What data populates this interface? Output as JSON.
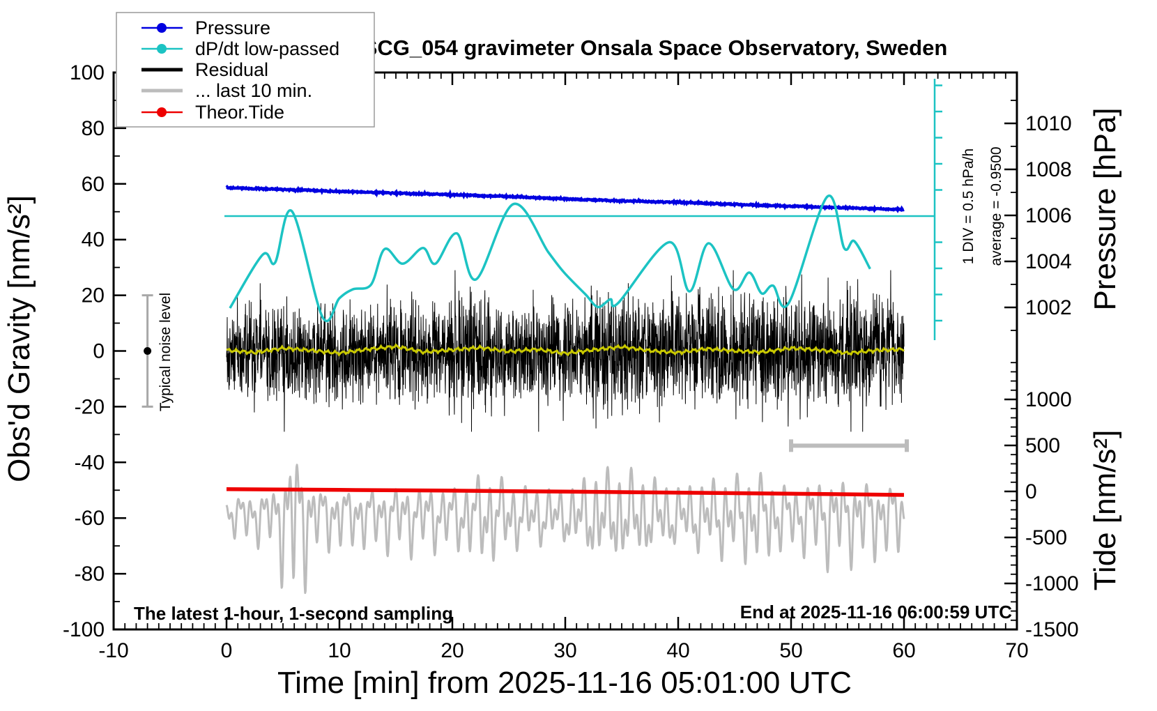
{
  "title": "SCG_054 gravimeter Onsala Space Observatory, Sweden",
  "legend": {
    "entries": [
      {
        "label": "Pressure",
        "color": "#0000e0",
        "line_width": 2.5,
        "dot": true
      },
      {
        "label": "dP/dt low-passed",
        "color": "#1cc3c3",
        "line_width": 2.5,
        "dot": true
      },
      {
        "label": "Residual",
        "color": "#000000",
        "line_width": 5,
        "dot": false
      },
      {
        "label": "... last 10 min.",
        "color": "#bcbcbc",
        "line_width": 5,
        "dot": false
      },
      {
        "label": "Theor.Tide",
        "color": "#ee0000",
        "line_width": 2.5,
        "dot": true
      }
    ]
  },
  "axes": {
    "x": {
      "label": "Time [min] from 2025-11-16 05:01:00 UTC",
      "min": -10,
      "max": 70,
      "major_ticks": [
        -10,
        0,
        10,
        20,
        30,
        40,
        50,
        60,
        70
      ],
      "minor_step": 1
    },
    "y_left": {
      "label": "Obs'd Gravity [nm/s²]",
      "min": -100,
      "max": 100,
      "major_ticks": [
        -100,
        -80,
        -60,
        -40,
        -20,
        0,
        20,
        40,
        60,
        80,
        100
      ],
      "minor_step": 10
    },
    "y_right_pressure": {
      "label": "Pressure [hPa]",
      "major_ticks": [
        1010,
        1008,
        1006,
        1004,
        1002
      ],
      "minor_ticks": [
        1011,
        1009,
        1007,
        1005,
        1003,
        1001
      ]
    },
    "y_right_tide": {
      "label": "Tide [nm/s²]",
      "major_ticks": [
        1000,
        500,
        0,
        -500,
        -1000,
        -1500
      ],
      "minor_step": 100,
      "minor_top": 1400
    }
  },
  "annotations": {
    "div_scale": "1 DIV = 0.5 hPa/h",
    "average": "average = -0.9500",
    "noise_label": "Typical noise level",
    "sampling_note": "The latest 1-hour, 1-second sampling",
    "end_note": "End at 2025-11-16 06:00:59 UTC"
  },
  "chart_data": {
    "type": "line",
    "title": "SCG_054 gravimeter Onsala Space Observatory, Sweden",
    "xlabel": "Time [min] from 2025-11-16 05:01:00 UTC",
    "x_range_min": [
      -10,
      70
    ],
    "grid": false,
    "legend_position": "top-left",
    "series": [
      {
        "name": "Pressure",
        "axis": "pressure_hPa",
        "color": "#0000e0",
        "width": 4.5,
        "t": [
          0,
          5,
          10,
          15,
          20,
          25,
          30,
          35,
          40,
          45,
          50,
          55,
          60
        ],
        "v": [
          1007.2,
          1007.13,
          1007.04,
          1006.97,
          1006.9,
          1006.82,
          1006.72,
          1006.63,
          1006.57,
          1006.48,
          1006.4,
          1006.33,
          1006.25
        ],
        "noise_hPa": 0.016
      },
      {
        "name": "dP/dt low-passed",
        "axis": "dpdt_hPa_per_h",
        "color": "#1cc3c3",
        "width": 3.5,
        "t": [
          0.3,
          3.2,
          4.3,
          5.8,
          8.5,
          10.0,
          11.2,
          12.8,
          14.0,
          15.6,
          17.4,
          18.5,
          20.4,
          22.1,
          25.4,
          28.5,
          29.9,
          31.8,
          32.9,
          34.0,
          34.7,
          39.2,
          41.0,
          42.7,
          44.9,
          46.3,
          47.4,
          48.4,
          49.8,
          53.2,
          54.7,
          55.6,
          57.0
        ],
        "v": [
          -1.76,
          -0.74,
          -0.89,
          0.09,
          -1.93,
          -1.57,
          -1.4,
          -1.31,
          -0.63,
          -0.91,
          -0.61,
          -0.91,
          -0.33,
          -1.21,
          0.23,
          -0.69,
          -1.08,
          -1.5,
          -1.74,
          -1.59,
          -1.66,
          -0.5,
          -1.44,
          -0.52,
          -1.4,
          -1.08,
          -1.48,
          -1.33,
          -1.66,
          0.37,
          -0.61,
          -0.48,
          -1.01
        ]
      },
      {
        "name": "Residual",
        "axis": "gravity_nm_s2",
        "color": "#000000",
        "width": 1,
        "kind": "noise",
        "sigma_t": [
          0,
          3,
          6,
          10,
          14,
          18,
          21,
          24,
          27,
          30,
          33,
          36,
          40,
          43,
          46,
          49,
          52,
          55,
          58,
          60
        ],
        "sigma_v": [
          7.5,
          8.5,
          8,
          8,
          8.5,
          8,
          10,
          9,
          8,
          8.5,
          11,
          10.5,
          9,
          10.5,
          9,
          9.5,
          9,
          10,
          9.5,
          9
        ],
        "clamp": 29,
        "samples": 3000
      },
      {
        "name": "Residual low-passed",
        "axis": "gravity_nm_s2",
        "color": "#c9c900",
        "width": 3,
        "t": [
          0,
          2.5,
          5,
          7.5,
          10,
          12.5,
          15,
          17.5,
          20,
          22.5,
          25,
          27.5,
          30,
          32.5,
          35,
          37.5,
          40,
          42.5,
          45,
          47.5,
          50,
          52.5,
          55,
          57.5,
          60
        ],
        "v": [
          0.3,
          -0.6,
          1.0,
          0.2,
          -0.8,
          0.6,
          1.6,
          -0.4,
          0.4,
          1.2,
          -0.2,
          0.6,
          -0.9,
          0.4,
          1.5,
          0.1,
          -0.6,
          0.8,
          0.0,
          -0.4,
          1.0,
          0.4,
          -0.8,
          0.2,
          0.6
        ],
        "ripple": 0.45
      },
      {
        "name": "... last 10 min.",
        "axis": "tide_nm_s2",
        "color": "#bcbcbc",
        "width": 3,
        "kind": "oscillation",
        "center": -250,
        "skew": 0.15,
        "periods": [
          1.05,
          0.52,
          2.3
        ],
        "weights": [
          0.55,
          0.45,
          0.25
        ],
        "phases": [
          0.7,
          2.1,
          4.0
        ],
        "amp_t": [
          0,
          4,
          6,
          8,
          12,
          16,
          20,
          23,
          26,
          30,
          33,
          36,
          40,
          43,
          47,
          50,
          53,
          56,
          60
        ],
        "amp_v": [
          200,
          300,
          850,
          330,
          300,
          350,
          330,
          500,
          330,
          300,
          520,
          500,
          330,
          420,
          500,
          330,
          450,
          420,
          350
        ],
        "floor": -1480
      },
      {
        "name": "Theor.Tide",
        "axis": "tide_nm_s2",
        "color": "#ee0000",
        "width": 5.5,
        "t": [
          0,
          10,
          20,
          30,
          40,
          50,
          60
        ],
        "v": [
          25,
          17,
          8,
          -2,
          -13,
          -25,
          -38
        ]
      }
    ],
    "dpdt_scalebar": {
      "label": "1 DIV = 0.5 hPa/h",
      "div_hPa_per_h": 0.5,
      "divisions": 10,
      "average_hPa_per_h": -0.95
    },
    "noise_level_bar": {
      "t": -7,
      "center_gravity": 0,
      "half_range_gravity": 20
    },
    "last10_bar": {
      "t_start": 50,
      "t_end": 60,
      "gravity": -34
    }
  }
}
